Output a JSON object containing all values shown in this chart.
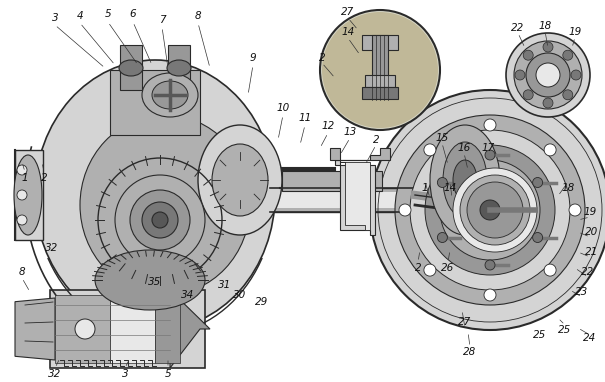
{
  "bg_color": "#ffffff",
  "figsize": [
    6.05,
    3.82
  ],
  "dpi": 100,
  "image_data": null
}
